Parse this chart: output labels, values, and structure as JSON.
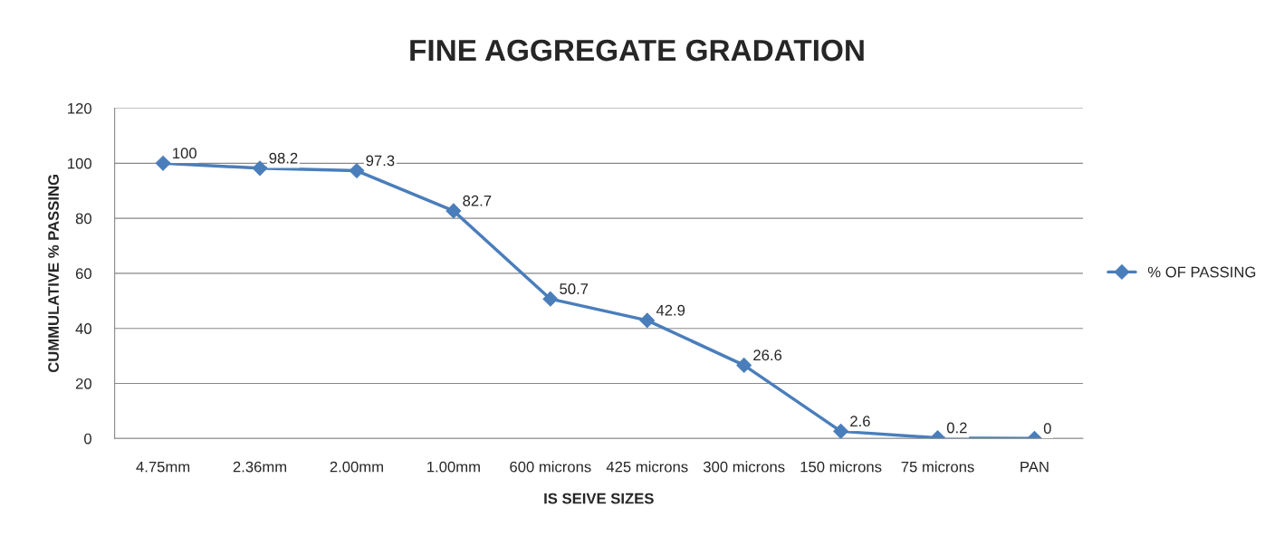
{
  "chart_data": {
    "type": "line",
    "title": "FINE AGGREGATE GRADATION",
    "xlabel": "IS SEIVE SIZES",
    "ylabel": "CUMMULATIVE % PASSING",
    "categories": [
      "4.75mm",
      "2.36mm",
      "2.00mm",
      "1.00mm",
      "600 microns",
      "425 microns",
      "300 microns",
      "150 microns",
      "75 microns",
      "PAN"
    ],
    "series": [
      {
        "name": "% OF PASSING",
        "color": "#4a7ebb",
        "values": [
          100,
          98.2,
          97.3,
          82.7,
          50.7,
          42.9,
          26.6,
          2.6,
          0.2,
          0
        ]
      }
    ],
    "ylim": [
      0,
      120
    ],
    "yticks": [
      0,
      20,
      40,
      60,
      80,
      100,
      120
    ],
    "grid": "y",
    "legend": "right",
    "marker": "diamond",
    "line_style": "solid",
    "data_labels": true
  }
}
